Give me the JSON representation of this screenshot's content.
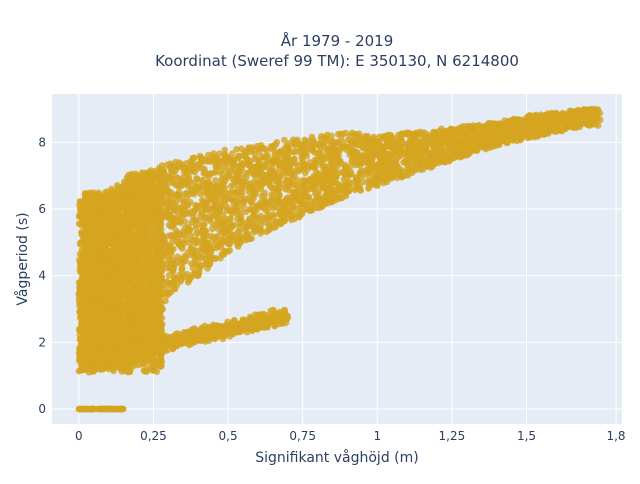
{
  "chart_data": {
    "type": "scatter",
    "title_line1": "År 1979 - 2019",
    "title_line2": "Koordinat (Sweref 99 TM): E 350130, N 6214800",
    "xlabel": "Signifikant våghöjd (m)",
    "ylabel": "Vågperiod (s)",
    "xlim": [
      -0.09,
      1.82
    ],
    "ylim": [
      -0.45,
      9.45
    ],
    "x_ticks": [
      0,
      0.25,
      0.5,
      0.75,
      1,
      1.25,
      1.5,
      1.8
    ],
    "x_tick_labels": [
      "0",
      "0,25",
      "0,5",
      "0,75",
      "1",
      "1,25",
      "1,5",
      "1,8"
    ],
    "y_ticks": [
      0,
      2,
      4,
      6,
      8
    ],
    "y_tick_labels": [
      "0",
      "2",
      "4",
      "6",
      "8"
    ],
    "grid": true,
    "marker_color": "#d4a520",
    "background_color": "#e5ecf6",
    "main_cloud_trend": {
      "x": [
        0.05,
        0.1,
        0.2,
        0.3,
        0.4,
        0.5,
        0.6,
        0.7,
        0.8,
        0.9,
        1.0,
        1.1,
        1.2,
        1.3,
        1.4,
        1.5,
        1.6,
        1.7
      ],
      "y_min": [
        1.1,
        1.2,
        1.4,
        3.4,
        4.0,
        4.7,
        5.2,
        5.6,
        6.0,
        6.4,
        6.7,
        7.0,
        7.3,
        7.6,
        7.9,
        8.1,
        8.3,
        8.5
      ],
      "y_max": [
        6.5,
        6.6,
        7.0,
        7.4,
        7.6,
        7.8,
        7.9,
        8.1,
        8.2,
        8.3,
        8.2,
        8.3,
        8.4,
        8.5,
        8.6,
        8.8,
        8.9,
        9.0
      ]
    },
    "secondary_band": {
      "x": [
        0.1,
        0.2,
        0.3,
        0.4,
        0.5,
        0.6,
        0.7
      ],
      "y": [
        1.5,
        1.8,
        2.0,
        2.2,
        2.4,
        2.6,
        2.8
      ]
    },
    "zero_period_points": {
      "x_range": [
        0,
        0.15
      ],
      "y": 0
    }
  }
}
